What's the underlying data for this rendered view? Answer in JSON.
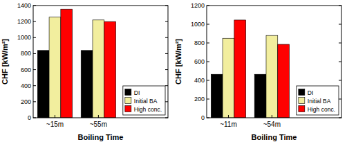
{
  "chart_data": [
    {
      "type": "bar",
      "categories": [
        "~15m",
        "~55m"
      ],
      "series": [
        {
          "name": "DI",
          "color": "#000000",
          "values": [
            840,
            840
          ]
        },
        {
          "name": "Initial BA",
          "color": "#f2ee9e",
          "values": [
            1255,
            1220
          ]
        },
        {
          "name": "High conc.",
          "color": "#ff0000",
          "values": [
            1355,
            1200
          ]
        }
      ],
      "x_label": "Boiling Time",
      "y_label": "CHF [kW/m²]",
      "ylim": [
        0,
        1400
      ],
      "yticks": [
        0,
        200,
        400,
        600,
        800,
        1000,
        1200,
        1400
      ],
      "grid": false,
      "legend": "lower right"
    },
    {
      "type": "bar",
      "categories": [
        "~11m",
        "~54m"
      ],
      "series": [
        {
          "name": "DI",
          "color": "#000000",
          "values": [
            465,
            465
          ]
        },
        {
          "name": "Initial BA",
          "color": "#f2ee9e",
          "values": [
            850,
            880
          ]
        },
        {
          "name": "High conc.",
          "color": "#ff0000",
          "values": [
            1045,
            785
          ]
        }
      ],
      "x_label": "Boiling Time",
      "y_label": "CHF [kW/m²]",
      "ylim": [
        0,
        1200
      ],
      "yticks": [
        0,
        200,
        400,
        600,
        800,
        1000,
        1200
      ],
      "grid": false,
      "legend": "lower right"
    }
  ]
}
